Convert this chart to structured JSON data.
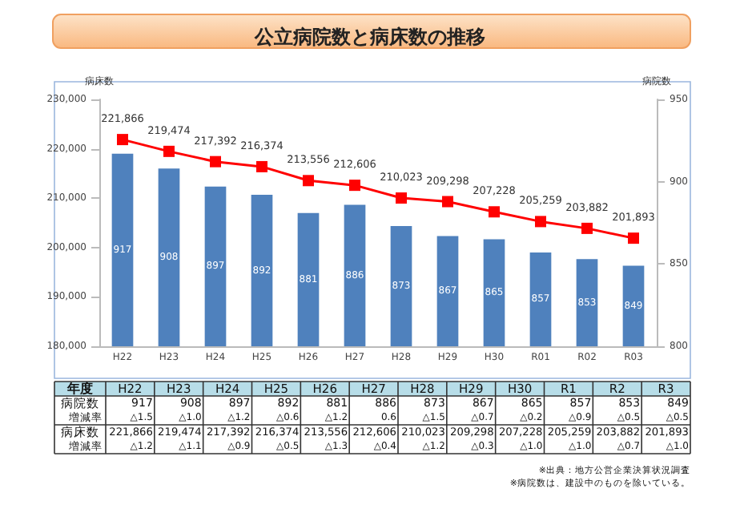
{
  "chart_data": {
    "type": "bar",
    "title": "公立病院数と病床数の推移",
    "ylabel": "病床数",
    "y2label": "病院数",
    "categories": [
      "H22",
      "H23",
      "H24",
      "H25",
      "H26",
      "H27",
      "H28",
      "H29",
      "H30",
      "R01",
      "R02",
      "R03"
    ],
    "series": [
      {
        "axis": "y2",
        "color": "#4f81bd",
        "values": [
          917,
          908,
          897,
          892,
          881,
          886,
          873,
          867,
          865,
          857,
          853,
          849
        ]
      },
      {
        "type": "line",
        "color": "#ff0000",
        "marker": "square",
        "values": [
          221866,
          219474,
          217392,
          216374,
          213556,
          212606,
          210023,
          209298,
          207228,
          205259,
          203882,
          201893
        ],
        "value_labels": [
          "221,866",
          "219,474",
          "217,392",
          "216,374",
          "213,556",
          "212,606",
          "210,023",
          "209,298",
          "207,228",
          "205,259",
          "203,882",
          "201,893"
        ]
      }
    ],
    "ylim": [
      180000,
      230000
    ],
    "yticks": [
      {
        "value": 180000,
        "label": "180,000"
      },
      {
        "value": 190000,
        "label": "190,000"
      },
      {
        "value": 200000,
        "label": "200,000"
      },
      {
        "value": 210000,
        "label": "210,000"
      },
      {
        "value": 220000,
        "label": "220,000"
      },
      {
        "value": 230000,
        "label": "230,000"
      }
    ],
    "y2lim": [
      800,
      950
    ],
    "y2ticks": [
      800,
      850,
      900,
      950
    ],
    "data_labels": true,
    "grid": false,
    "annotations": [
      "年度",
      "H22",
      "H23",
      "H24",
      "H25",
      "H26",
      "H27",
      "H28",
      "H29",
      "H30",
      "R1",
      "R2",
      "R3",
      "増減率",
      "917",
      "908",
      "897",
      "892",
      "881",
      "886",
      "873",
      "867",
      "865",
      "857",
      "853",
      "849",
      "△1.5",
      "△1.0",
      "△1.2",
      "△0.6",
      "△1.2",
      "0.6",
      "△1.5",
      "△0.7",
      "△0.2",
      "△0.9",
      "△0.5",
      "△0.5",
      "221,866",
      "219,474",
      "217,392",
      "216,374",
      "213,556",
      "212,606",
      "210,023",
      "209,298",
      "207,228",
      "205,259",
      "203,882",
      "201,893",
      "△1.2",
      "△1.1",
      "△0.9",
      "△0.5",
      "△1.3",
      "△0.4",
      "△1.2",
      "△0.3",
      "△1.0",
      "△1.0",
      "△0.7",
      "△1.0",
      "※出典：地方公営企業決算状況調査",
      "※病院数は、建設中のものを除いている。"
    ]
  }
}
